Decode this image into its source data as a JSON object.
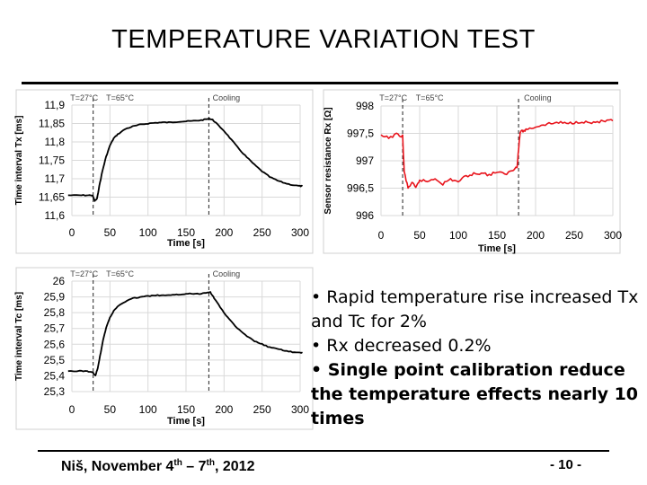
{
  "slide": {
    "title": "TEMPERATURE VARIATION TEST",
    "bullets": [
      "• Rapid temperature rise increased Tx and Tc for 2%",
      "• Rx decreased 0.2%",
      "• Single point calibration reduce the temperature effects nearly 10 times"
    ],
    "footer": {
      "city": "Niš, November 4",
      "sup1": "th",
      "dash": " – 7",
      "sup2": "th",
      "year": ", 2012"
    },
    "page_number": "- 10 -"
  },
  "chart_data": [
    {
      "type": "line",
      "title": "",
      "xlabel": "Time [s]",
      "ylabel": "Time interval Tx [ms]",
      "xlim": [
        0,
        300
      ],
      "ylim": [
        11.6,
        11.9
      ],
      "x_ticks": [
        "0",
        "50",
        "100",
        "150",
        "200",
        "250",
        "300"
      ],
      "y_ticks": [
        "11,6",
        "11,65",
        "11,7",
        "11,75",
        "11,8",
        "11,85",
        "11,9"
      ],
      "grid": true,
      "line_color": "#000000",
      "annotations": [
        "T=27°C",
        "T=65°C",
        "Cooling"
      ],
      "phase_markers": [
        28,
        180
      ],
      "series": [
        {
          "x": [
            -5,
            10,
            20,
            27,
            30,
            33,
            36,
            40,
            45,
            50,
            55,
            60,
            70,
            80,
            90,
            100,
            110,
            120,
            130,
            140,
            150,
            160,
            170,
            178,
            181,
            185,
            190,
            200,
            210,
            220,
            230,
            240,
            250,
            260,
            270,
            280,
            290,
            300,
            303
          ],
          "y": [
            11.655,
            11.655,
            11.655,
            11.655,
            11.64,
            11.645,
            11.68,
            11.72,
            11.76,
            11.79,
            11.81,
            11.82,
            11.835,
            11.842,
            11.847,
            11.85,
            11.852,
            11.853,
            11.853,
            11.855,
            11.856,
            11.857,
            11.859,
            11.862,
            11.863,
            11.86,
            11.85,
            11.83,
            11.805,
            11.78,
            11.758,
            11.738,
            11.72,
            11.705,
            11.695,
            11.688,
            11.683,
            11.68,
            11.68
          ]
        }
      ]
    },
    {
      "type": "line",
      "title": "",
      "xlabel": "Time [s]",
      "ylabel": "Sensor resistance Rx [Ω]",
      "xlim": [
        0,
        300
      ],
      "ylim": [
        996,
        998
      ],
      "x_ticks": [
        "0",
        "50",
        "100",
        "150",
        "200",
        "250",
        "300"
      ],
      "y_ticks": [
        "996",
        "996,5",
        "997",
        "997,5",
        "998"
      ],
      "grid": true,
      "line_color": "#e8141c",
      "annotations": [
        "T=27°C",
        "T=65°C",
        "Cooling"
      ],
      "phase_markers": [
        28,
        178
      ],
      "series": [
        {
          "x": [
            0,
            10,
            20,
            28,
            30,
            35,
            40,
            45,
            50,
            60,
            70,
            80,
            90,
            100,
            110,
            120,
            130,
            140,
            150,
            160,
            170,
            176,
            178,
            180,
            185,
            190,
            200,
            210,
            220,
            230,
            240,
            250,
            260,
            270,
            280,
            290,
            300
          ],
          "y": [
            997.45,
            997.42,
            997.48,
            997.45,
            996.8,
            996.5,
            996.6,
            996.5,
            996.65,
            996.62,
            996.68,
            996.58,
            996.66,
            996.62,
            996.72,
            996.76,
            996.78,
            996.74,
            996.8,
            996.75,
            996.82,
            996.9,
            997.2,
            997.52,
            997.55,
            997.58,
            997.62,
            997.66,
            997.68,
            997.7,
            997.68,
            997.7,
            997.72,
            997.69,
            997.71,
            997.72,
            997.73
          ]
        }
      ]
    },
    {
      "type": "line",
      "title": "",
      "xlabel": "Time [s]",
      "ylabel": "Time interval Tc [ms]",
      "xlim": [
        0,
        300
      ],
      "ylim": [
        25.3,
        26
      ],
      "x_ticks": [
        "0",
        "50",
        "100",
        "150",
        "200",
        "250",
        "300"
      ],
      "y_ticks": [
        "25,3",
        "25,4",
        "25,5",
        "25,6",
        "25,7",
        "25,8",
        "25,9",
        "26"
      ],
      "grid": true,
      "line_color": "#000000",
      "annotations": [
        "T=27°C",
        "T=65°C",
        "Cooling"
      ],
      "phase_markers": [
        28,
        180
      ],
      "series": [
        {
          "x": [
            -5,
            10,
            20,
            28,
            31,
            34,
            38,
            42,
            46,
            50,
            55,
            60,
            70,
            80,
            90,
            100,
            110,
            120,
            130,
            140,
            150,
            160,
            170,
            178,
            182,
            186,
            190,
            200,
            210,
            220,
            230,
            240,
            250,
            260,
            270,
            280,
            290,
            300,
            303
          ],
          "y": [
            25.43,
            25.43,
            25.43,
            25.42,
            25.4,
            25.45,
            25.55,
            25.65,
            25.72,
            25.77,
            25.81,
            25.84,
            25.87,
            25.89,
            25.9,
            25.905,
            25.91,
            25.91,
            25.91,
            25.915,
            25.92,
            25.92,
            25.92,
            25.93,
            25.93,
            25.9,
            25.87,
            25.8,
            25.74,
            25.69,
            25.65,
            25.62,
            25.6,
            25.58,
            25.57,
            25.56,
            25.55,
            25.545,
            25.545
          ]
        }
      ]
    }
  ]
}
